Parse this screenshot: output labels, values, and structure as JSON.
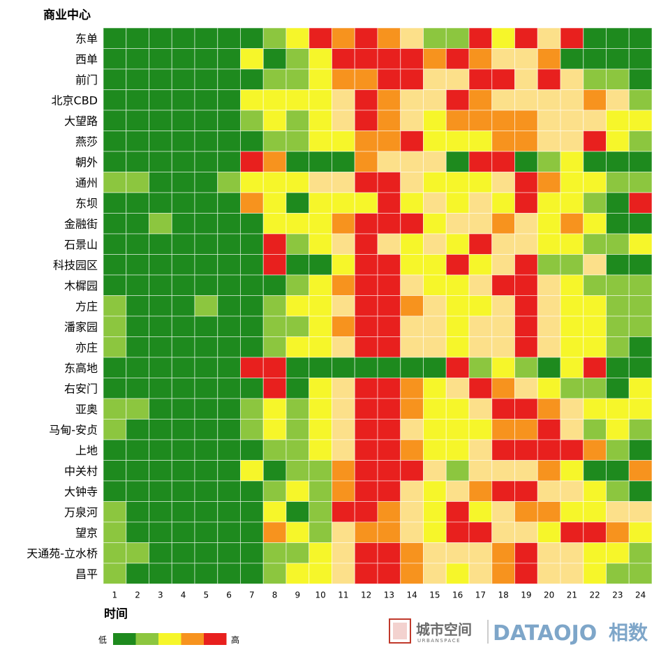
{
  "chart_data": {
    "type": "heatmap",
    "ylabel": "商业中心",
    "xlabel": "时间",
    "rows": [
      "东单",
      "西单",
      "前门",
      "北京CBD",
      "大望路",
      "燕莎",
      "朝外",
      "通州",
      "东坝",
      "金融街",
      "石景山",
      "科技园区",
      "木樨园",
      "方庄",
      "潘家园",
      "亦庄",
      "东高地",
      "右安门",
      "亚奥",
      "马甸-安贞",
      "上地",
      "中关村",
      "大钟寺",
      "万泉河",
      "望京",
      "天通苑-立水桥",
      "昌平"
    ],
    "columns": [
      "1",
      "2",
      "3",
      "4",
      "5",
      "6",
      "7",
      "8",
      "9",
      "10",
      "11",
      "12",
      "13",
      "14",
      "15",
      "16",
      "17",
      "18",
      "19",
      "20",
      "21",
      "22",
      "23",
      "24"
    ],
    "scale_min": 0,
    "scale_max": 5,
    "legend": {
      "low": "低",
      "high": "高"
    },
    "colors": [
      "#1e8a1e",
      "#8cc63f",
      "#f6f62a",
      "#fce08a",
      "#f7931e",
      "#e8201e"
    ],
    "values": [
      [
        0,
        0,
        0,
        0,
        0,
        0,
        0,
        1,
        2,
        5,
        4,
        5,
        4,
        3,
        1,
        1,
        5,
        2,
        5,
        3,
        5,
        0,
        0,
        0
      ],
      [
        0,
        0,
        0,
        0,
        0,
        0,
        2,
        0,
        1,
        2,
        5,
        5,
        5,
        5,
        4,
        5,
        4,
        3,
        3,
        4,
        0,
        0,
        0,
        0
      ],
      [
        0,
        0,
        0,
        0,
        0,
        0,
        0,
        1,
        1,
        2,
        4,
        4,
        5,
        5,
        3,
        3,
        5,
        5,
        3,
        5,
        3,
        1,
        1,
        0
      ],
      [
        0,
        0,
        0,
        0,
        0,
        0,
        2,
        2,
        2,
        2,
        3,
        5,
        4,
        3,
        3,
        5,
        4,
        3,
        3,
        3,
        3,
        4,
        3,
        1
      ],
      [
        0,
        0,
        0,
        0,
        0,
        0,
        1,
        2,
        1,
        2,
        3,
        5,
        4,
        3,
        2,
        4,
        4,
        4,
        4,
        3,
        3,
        3,
        2,
        2
      ],
      [
        0,
        0,
        0,
        0,
        0,
        0,
        0,
        1,
        1,
        2,
        2,
        4,
        4,
        5,
        2,
        2,
        2,
        4,
        4,
        3,
        3,
        5,
        2,
        1
      ],
      [
        0,
        0,
        0,
        0,
        0,
        0,
        5,
        4,
        0,
        0,
        0,
        4,
        3,
        3,
        3,
        0,
        5,
        5,
        0,
        1,
        2,
        0,
        0,
        0
      ],
      [
        1,
        1,
        0,
        0,
        0,
        1,
        2,
        2,
        2,
        3,
        3,
        5,
        5,
        3,
        2,
        2,
        2,
        3,
        5,
        4,
        2,
        2,
        1,
        1
      ],
      [
        0,
        0,
        0,
        0,
        0,
        0,
        4,
        2,
        0,
        2,
        2,
        2,
        5,
        2,
        3,
        2,
        3,
        2,
        5,
        2,
        2,
        1,
        0,
        5
      ],
      [
        0,
        0,
        1,
        0,
        0,
        0,
        0,
        2,
        2,
        2,
        4,
        5,
        5,
        5,
        2,
        3,
        3,
        4,
        3,
        2,
        4,
        2,
        0,
        0
      ],
      [
        0,
        0,
        0,
        0,
        0,
        0,
        0,
        5,
        1,
        2,
        3,
        5,
        3,
        2,
        3,
        2,
        5,
        3,
        3,
        2,
        2,
        1,
        1,
        2
      ],
      [
        0,
        0,
        0,
        0,
        0,
        0,
        0,
        5,
        0,
        0,
        2,
        5,
        5,
        2,
        2,
        5,
        2,
        3,
        5,
        1,
        1,
        3,
        0,
        0
      ],
      [
        0,
        0,
        0,
        0,
        0,
        0,
        0,
        0,
        1,
        2,
        4,
        5,
        5,
        3,
        2,
        2,
        3,
        5,
        5,
        3,
        2,
        1,
        1,
        1
      ],
      [
        1,
        0,
        0,
        0,
        1,
        0,
        0,
        1,
        2,
        2,
        3,
        5,
        5,
        4,
        3,
        2,
        2,
        3,
        5,
        3,
        2,
        2,
        1,
        1
      ],
      [
        1,
        0,
        0,
        0,
        0,
        0,
        0,
        1,
        1,
        2,
        4,
        5,
        5,
        3,
        3,
        2,
        3,
        3,
        5,
        3,
        2,
        2,
        1,
        1
      ],
      [
        1,
        0,
        0,
        0,
        0,
        0,
        0,
        1,
        2,
        2,
        3,
        5,
        5,
        3,
        3,
        2,
        3,
        3,
        5,
        3,
        2,
        2,
        1,
        0
      ],
      [
        0,
        0,
        0,
        0,
        0,
        0,
        5,
        5,
        0,
        0,
        0,
        0,
        0,
        0,
        0,
        5,
        1,
        2,
        1,
        0,
        2,
        5,
        0,
        0
      ],
      [
        0,
        0,
        0,
        0,
        0,
        0,
        0,
        5,
        0,
        2,
        3,
        5,
        5,
        4,
        2,
        3,
        5,
        4,
        3,
        2,
        1,
        1,
        0,
        2
      ],
      [
        1,
        1,
        0,
        0,
        0,
        0,
        1,
        2,
        1,
        2,
        3,
        5,
        5,
        4,
        2,
        2,
        3,
        5,
        5,
        4,
        3,
        2,
        2,
        2
      ],
      [
        1,
        0,
        0,
        0,
        0,
        0,
        1,
        2,
        1,
        2,
        3,
        5,
        5,
        3,
        2,
        2,
        2,
        4,
        4,
        5,
        3,
        1,
        2,
        1
      ],
      [
        0,
        0,
        0,
        0,
        0,
        0,
        0,
        1,
        1,
        2,
        3,
        5,
        5,
        4,
        2,
        2,
        3,
        5,
        5,
        5,
        5,
        4,
        1,
        0
      ],
      [
        0,
        0,
        0,
        0,
        0,
        0,
        2,
        0,
        1,
        1,
        4,
        5,
        5,
        5,
        3,
        1,
        3,
        3,
        3,
        4,
        2,
        0,
        0,
        4
      ],
      [
        0,
        0,
        0,
        0,
        0,
        0,
        0,
        1,
        2,
        1,
        4,
        5,
        5,
        3,
        2,
        3,
        4,
        5,
        5,
        3,
        3,
        2,
        1,
        0
      ],
      [
        1,
        0,
        0,
        0,
        0,
        0,
        0,
        2,
        0,
        1,
        5,
        5,
        4,
        3,
        2,
        5,
        2,
        3,
        4,
        4,
        2,
        2,
        3,
        3
      ],
      [
        1,
        0,
        0,
        0,
        0,
        0,
        0,
        4,
        2,
        1,
        3,
        4,
        4,
        3,
        2,
        5,
        5,
        3,
        3,
        2,
        5,
        5,
        4,
        2
      ],
      [
        1,
        1,
        0,
        0,
        0,
        0,
        0,
        1,
        1,
        2,
        3,
        5,
        5,
        4,
        3,
        3,
        3,
        4,
        5,
        3,
        3,
        2,
        2,
        1
      ],
      [
        1,
        0,
        0,
        0,
        0,
        0,
        0,
        1,
        2,
        2,
        3,
        5,
        5,
        4,
        3,
        2,
        3,
        4,
        5,
        3,
        3,
        2,
        1,
        1
      ]
    ]
  },
  "branding": {
    "seal_text": "城市空间",
    "urbanspace_cn": "城市空间",
    "urbanspace_en": "URBANSPACE",
    "dataojo": "DATAOJO",
    "dataojo_cn": "相数"
  }
}
